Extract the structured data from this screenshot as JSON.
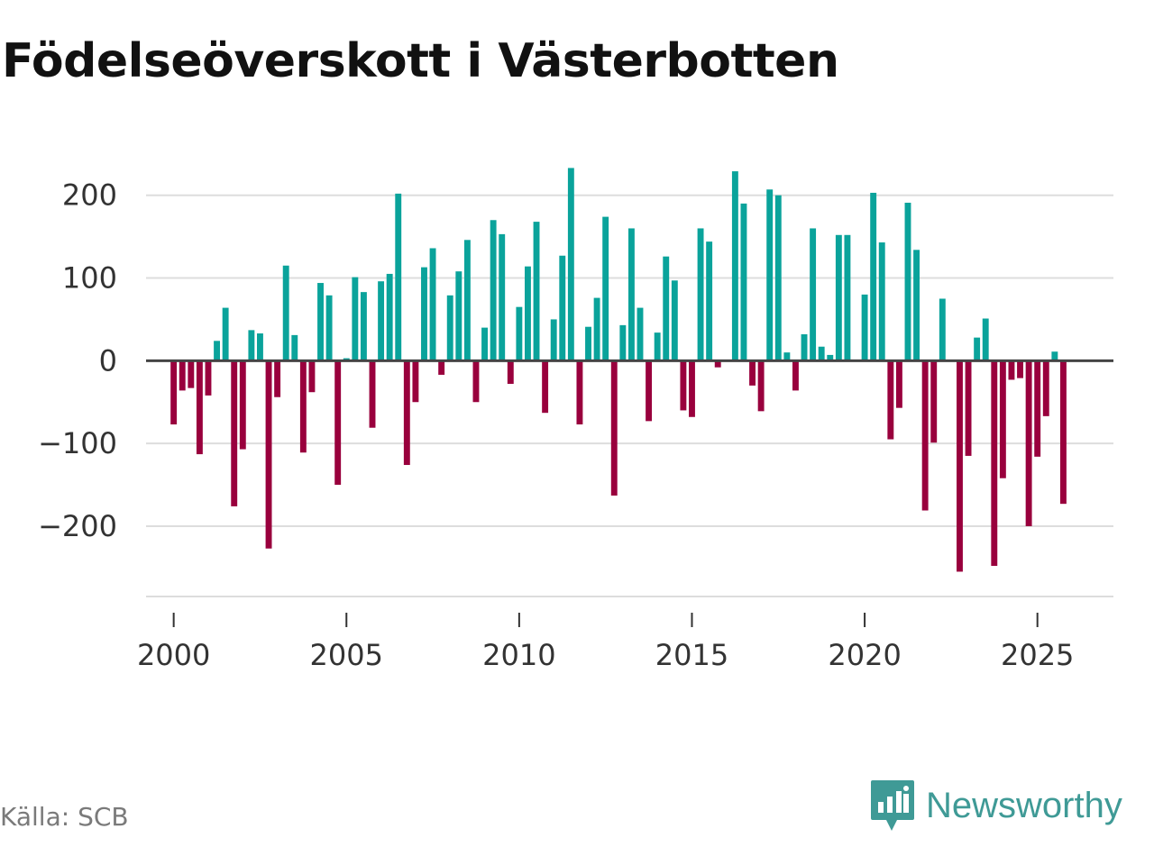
{
  "title": "Födelseöverskott i Västerbotten",
  "source": "Källa: SCB",
  "brand": {
    "name": "Newsworthy",
    "icon": "newsworthy-logo-icon"
  },
  "colors": {
    "positive": "#0aa39b",
    "negative": "#99003d",
    "grid": "#dddddd",
    "zero_line": "#444444",
    "brand": "#3f9a96"
  },
  "chart_data": {
    "type": "bar",
    "title": "Födelseöverskott i Västerbotten",
    "xlabel": "",
    "ylabel": "",
    "frequency": "quarterly",
    "x_start": 2000,
    "xlim": [
      1999.2,
      2027.2
    ],
    "ylim": [
      -285,
      240
    ],
    "yticks": [
      -200,
      -100,
      0,
      100,
      200
    ],
    "ytick_labels": [
      "−200",
      "−100",
      "0",
      "100",
      "200"
    ],
    "xticks": [
      2000,
      2005,
      2010,
      2015,
      2020,
      2025
    ],
    "xtick_labels": [
      "2000",
      "2005",
      "2010",
      "2015",
      "2020",
      "2025"
    ],
    "values": [
      -77,
      -36,
      -33,
      -113,
      -42,
      24,
      64,
      -176,
      -107,
      37,
      33,
      -227,
      -44,
      115,
      31,
      -111,
      -38,
      94,
      79,
      -150,
      3,
      101,
      83,
      -81,
      96,
      105,
      202,
      -126,
      -50,
      113,
      136,
      -17,
      79,
      108,
      146,
      -50,
      40,
      170,
      153,
      -28,
      65,
      114,
      168,
      -63,
      50,
      127,
      233,
      -77,
      41,
      76,
      174,
      -163,
      43,
      160,
      64,
      -73,
      34,
      126,
      97,
      -60,
      -68,
      160,
      144,
      -8,
      -1,
      229,
      190,
      -30,
      -61,
      207,
      200,
      10,
      -36,
      32,
      160,
      17,
      7,
      152,
      152,
      -1,
      80,
      203,
      143,
      -95,
      -57,
      191,
      134,
      -181,
      -99,
      75,
      -1,
      -255,
      -115,
      28,
      51,
      -248,
      -142,
      -23,
      -21,
      -200,
      -116,
      -67,
      11,
      -173
    ]
  }
}
